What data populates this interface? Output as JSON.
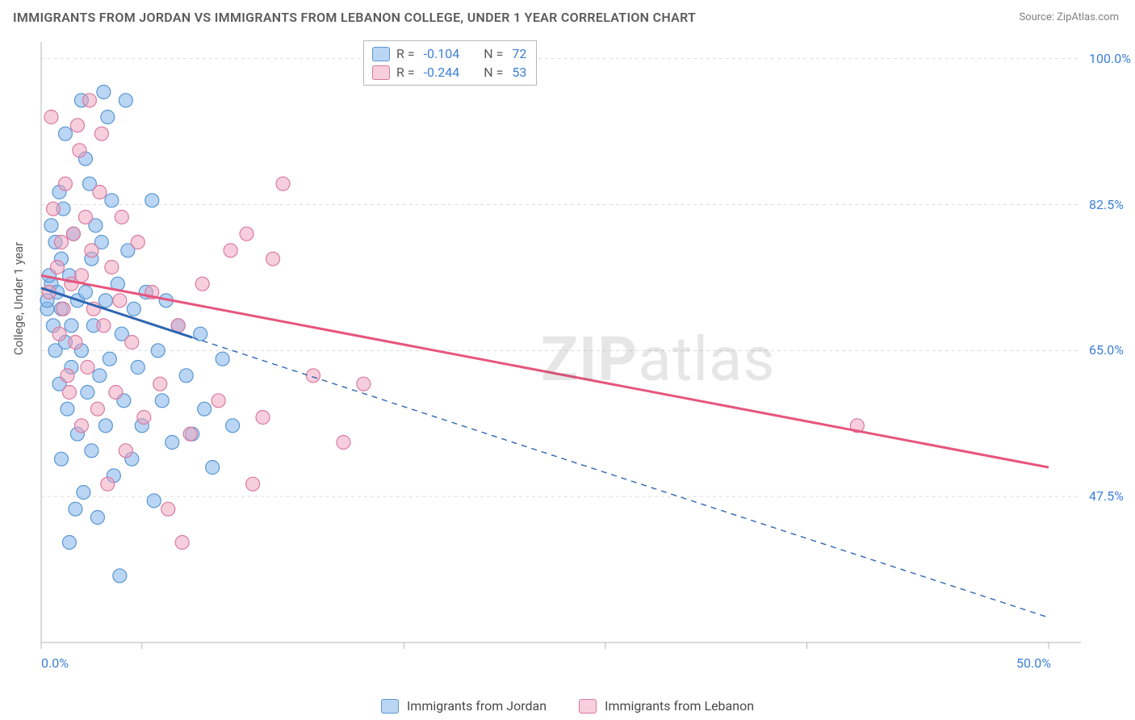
{
  "title": "IMMIGRANTS FROM JORDAN VS IMMIGRANTS FROM LEBANON COLLEGE, UNDER 1 YEAR CORRELATION CHART",
  "source_label": "Source:",
  "source_name": "ZipAtlas.com",
  "ylabel": "College, Under 1 year",
  "watermark": "ZIPatlas",
  "chart": {
    "type": "scatter",
    "xlim": [
      0,
      50
    ],
    "ylim": [
      30,
      102
    ],
    "xticks": [
      0,
      5,
      18,
      28,
      38,
      50
    ],
    "xtick_labels": {
      "0": "0.0%",
      "50": "50.0%"
    },
    "yticks": [
      47.5,
      65.0,
      82.5,
      100.0
    ],
    "ytick_labels": [
      "47.5%",
      "65.0%",
      "82.5%",
      "100.0%"
    ],
    "grid_color": "#dcdcdc",
    "axis_color": "#b7b7b7",
    "background_color": "#ffffff",
    "series": [
      {
        "key": "jordan",
        "label": "Immigrants from Jordan",
        "r_value": "-0.104",
        "n_value": "72",
        "marker_color_fill": "rgba(130,180,235,0.55)",
        "marker_color_stroke": "#5a97d2",
        "line_color": "#2f66b3",
        "line_solid_to_x": 7.5,
        "trend": {
          "x1": 0,
          "y1": 72.5,
          "x2": 50,
          "y2": 33
        },
        "points": [
          [
            0.3,
            70
          ],
          [
            0.3,
            71
          ],
          [
            0.5,
            73
          ],
          [
            0.6,
            68
          ],
          [
            0.7,
            65
          ],
          [
            0.7,
            78
          ],
          [
            0.8,
            72
          ],
          [
            0.9,
            61
          ],
          [
            1.0,
            70
          ],
          [
            1.0,
            76
          ],
          [
            1.1,
            82
          ],
          [
            1.2,
            66
          ],
          [
            1.2,
            91
          ],
          [
            1.3,
            58
          ],
          [
            1.4,
            74
          ],
          [
            1.5,
            68
          ],
          [
            1.5,
            63
          ],
          [
            1.6,
            79
          ],
          [
            1.8,
            55
          ],
          [
            1.8,
            71
          ],
          [
            2.0,
            95
          ],
          [
            2.0,
            65
          ],
          [
            2.1,
            48
          ],
          [
            2.2,
            72
          ],
          [
            2.3,
            60
          ],
          [
            2.4,
            85
          ],
          [
            2.5,
            53
          ],
          [
            2.5,
            76
          ],
          [
            2.6,
            68
          ],
          [
            2.8,
            45
          ],
          [
            2.9,
            62
          ],
          [
            3.0,
            78
          ],
          [
            3.1,
            96
          ],
          [
            3.2,
            56
          ],
          [
            3.2,
            71
          ],
          [
            3.4,
            64
          ],
          [
            3.5,
            83
          ],
          [
            3.6,
            50
          ],
          [
            3.8,
            73
          ],
          [
            3.9,
            38
          ],
          [
            4.0,
            67
          ],
          [
            4.1,
            59
          ],
          [
            4.3,
            77
          ],
          [
            4.5,
            52
          ],
          [
            4.6,
            70
          ],
          [
            4.8,
            63
          ],
          [
            5.0,
            56
          ],
          [
            5.2,
            72
          ],
          [
            5.5,
            83
          ],
          [
            5.6,
            47
          ],
          [
            5.8,
            65
          ],
          [
            6.0,
            59
          ],
          [
            6.2,
            71
          ],
          [
            6.5,
            54
          ],
          [
            6.8,
            68
          ],
          [
            7.2,
            62
          ],
          [
            7.5,
            55
          ],
          [
            7.9,
            67
          ],
          [
            8.1,
            58
          ],
          [
            8.5,
            51
          ],
          [
            9.0,
            64
          ],
          [
            9.5,
            56
          ],
          [
            1.4,
            42
          ],
          [
            1.0,
            52
          ],
          [
            2.2,
            88
          ],
          [
            0.5,
            80
          ],
          [
            4.2,
            95
          ],
          [
            1.7,
            46
          ],
          [
            3.3,
            93
          ],
          [
            0.4,
            74
          ],
          [
            0.9,
            84
          ],
          [
            2.7,
            80
          ]
        ]
      },
      {
        "key": "lebanon",
        "label": "Immigrants from Lebanon",
        "r_value": "-0.244",
        "n_value": "53",
        "marker_color_fill": "rgba(240,160,185,0.50)",
        "marker_color_stroke": "#d97aa1",
        "line_color": "#e7557e",
        "line_solid_to_x": 50,
        "trend": {
          "x1": 0,
          "y1": 74,
          "x2": 50,
          "y2": 51
        },
        "points": [
          [
            0.4,
            72
          ],
          [
            0.6,
            82
          ],
          [
            0.8,
            75
          ],
          [
            0.9,
            67
          ],
          [
            1.0,
            78
          ],
          [
            1.1,
            70
          ],
          [
            1.2,
            85
          ],
          [
            1.3,
            62
          ],
          [
            1.5,
            73
          ],
          [
            1.6,
            79
          ],
          [
            1.7,
            66
          ],
          [
            1.8,
            92
          ],
          [
            2.0,
            56
          ],
          [
            2.0,
            74
          ],
          [
            2.2,
            81
          ],
          [
            2.3,
            63
          ],
          [
            2.5,
            77
          ],
          [
            2.6,
            70
          ],
          [
            2.8,
            58
          ],
          [
            2.9,
            84
          ],
          [
            3.1,
            68
          ],
          [
            3.3,
            49
          ],
          [
            3.5,
            75
          ],
          [
            3.7,
            60
          ],
          [
            3.9,
            71
          ],
          [
            4.2,
            53
          ],
          [
            4.5,
            66
          ],
          [
            4.8,
            78
          ],
          [
            5.1,
            57
          ],
          [
            5.5,
            72
          ],
          [
            5.9,
            61
          ],
          [
            6.3,
            46
          ],
          [
            6.8,
            68
          ],
          [
            7.4,
            55
          ],
          [
            8.0,
            73
          ],
          [
            8.8,
            59
          ],
          [
            9.4,
            77
          ],
          [
            10.2,
            79
          ],
          [
            11.0,
            57
          ],
          [
            12.0,
            85
          ],
          [
            13.5,
            62
          ],
          [
            15.0,
            54
          ],
          [
            16.0,
            61
          ],
          [
            10.5,
            49
          ],
          [
            7.0,
            42
          ],
          [
            2.4,
            95
          ],
          [
            1.9,
            89
          ],
          [
            4.0,
            81
          ],
          [
            1.4,
            60
          ],
          [
            40.5,
            56
          ],
          [
            0.5,
            93
          ],
          [
            3.0,
            91
          ],
          [
            11.5,
            76
          ]
        ]
      }
    ]
  },
  "legend_top_labels": {
    "r": "R =",
    "n": "N ="
  },
  "axis_label_color": "#3d7fd6"
}
